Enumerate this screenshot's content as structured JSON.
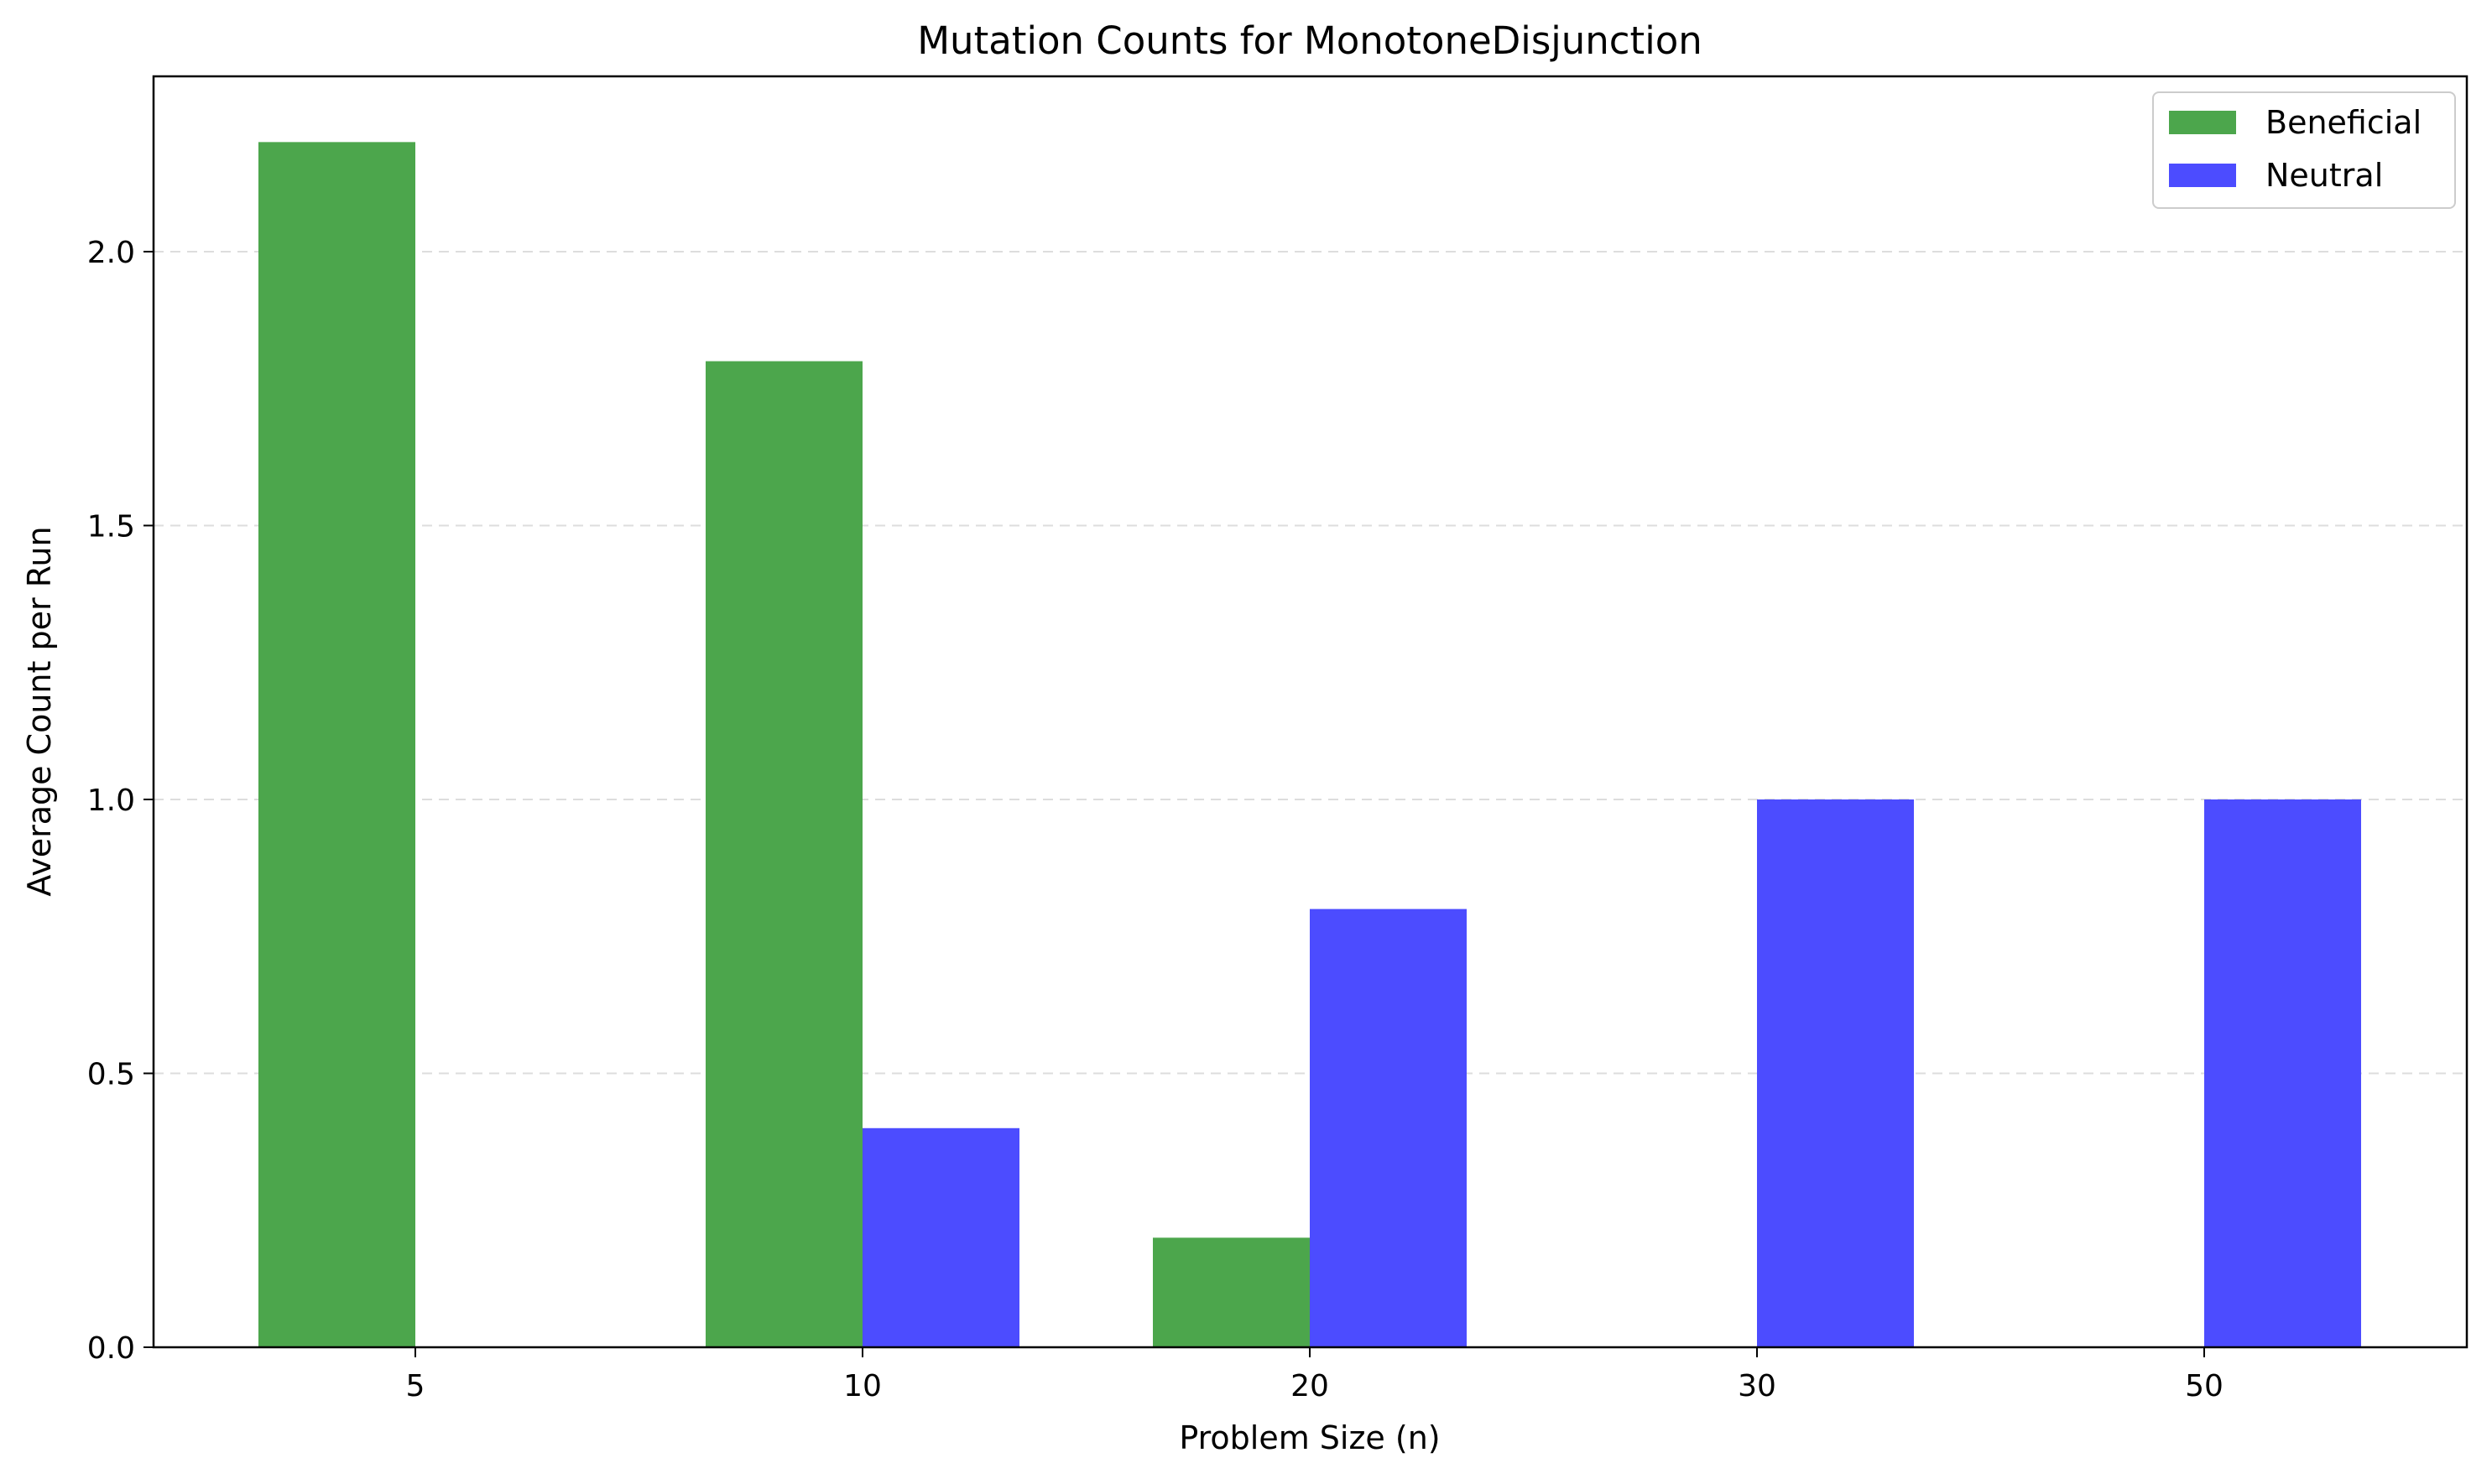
{
  "chart_data": {
    "type": "bar",
    "title": "Mutation Counts for MonotoneDisjunction",
    "xlabel": "Problem Size (n)",
    "ylabel": "Average Count per Run",
    "categories": [
      "5",
      "10",
      "20",
      "30",
      "50"
    ],
    "series": [
      {
        "name": "Beneficial",
        "color": "#4ca64c",
        "values": [
          2.2,
          1.8,
          0.2,
          0.0,
          0.0
        ]
      },
      {
        "name": "Neutral",
        "color": "#4c4cff",
        "values": [
          0.0,
          0.4,
          0.8,
          1.0,
          1.0
        ]
      }
    ],
    "ylim": [
      0,
      2.32
    ],
    "yticks": [
      "0.0",
      "0.5",
      "1.0",
      "1.5",
      "2.0"
    ],
    "grid": "horizontal dashed",
    "legend_position": "top-right"
  }
}
